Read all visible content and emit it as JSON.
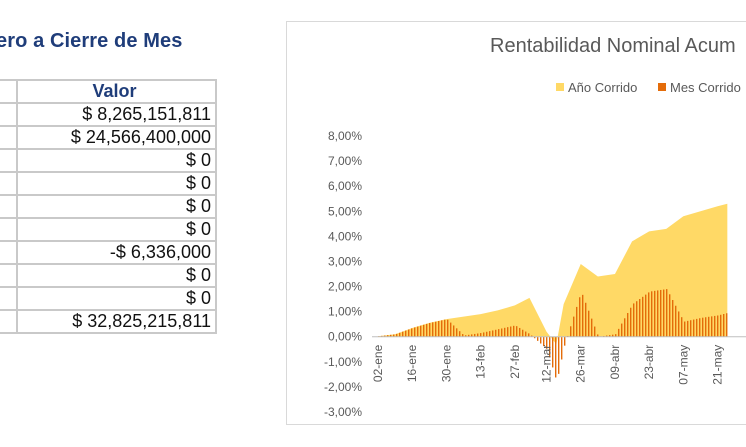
{
  "report": {
    "title": "ero a Cierre de Mes",
    "column_header": "Valor",
    "values": [
      "$ 8,265,151,811",
      "$ 24,566,400,000",
      "$ 0",
      "$ 0",
      "$ 0",
      "$ 0",
      "-$ 6,336,000",
      "$ 0",
      "$ 0",
      "$ 32,825,215,811"
    ]
  },
  "chart_data": {
    "type": "area",
    "title": "Rentabilidad Nominal Acum",
    "legend": [
      {
        "name": "Año Corrido",
        "color": "#ffd966"
      },
      {
        "name": "Mes Corrido",
        "color": "#e46c0a"
      }
    ],
    "legend_position": "top",
    "ylim": [
      -3,
      8
    ],
    "y_ticks": [
      "8,00%",
      "7,00%",
      "6,00%",
      "5,00%",
      "4,00%",
      "3,00%",
      "2,00%",
      "1,00%",
      "0,00%",
      "-1,00%",
      "-2,00%",
      "-3,00%"
    ],
    "x_ticks": [
      "02-ene",
      "16-ene",
      "30-ene",
      "13-feb",
      "27-feb",
      "12-mar",
      "26-mar",
      "09-abr",
      "23-abr",
      "07-may",
      "21-may"
    ],
    "grid": false,
    "series": [
      {
        "name": "Año Corrido",
        "x": [
          "02-ene",
          "09-ene",
          "16-ene",
          "23-ene",
          "30-ene",
          "06-feb",
          "13-feb",
          "20-feb",
          "27-feb",
          "05-mar",
          "12-mar",
          "16-mar",
          "19-mar",
          "26-mar",
          "02-abr",
          "09-abr",
          "16-abr",
          "23-abr",
          "30-abr",
          "07-may",
          "14-may",
          "21-may",
          "25-may"
        ],
        "values": [
          0.02,
          0.1,
          0.35,
          0.55,
          0.7,
          0.8,
          0.9,
          1.05,
          1.25,
          1.55,
          0.2,
          -0.3,
          1.3,
          2.9,
          2.4,
          2.5,
          3.8,
          4.2,
          4.3,
          4.8,
          5.0,
          5.2,
          5.3
        ]
      },
      {
        "name": "Mes Corrido",
        "x": [
          "02-ene",
          "09-ene",
          "16-ene",
          "23-ene",
          "30-ene",
          "06-feb",
          "13-feb",
          "20-feb",
          "27-feb",
          "05-mar",
          "12-mar",
          "16-mar",
          "19-mar",
          "26-mar",
          "02-abr",
          "09-abr",
          "16-abr",
          "23-abr",
          "30-abr",
          "07-may",
          "14-may",
          "21-may",
          "25-may"
        ],
        "values": [
          0.02,
          0.1,
          0.35,
          0.55,
          0.7,
          0.05,
          0.15,
          0.3,
          0.45,
          0.1,
          -0.5,
          -1.8,
          -0.4,
          1.8,
          0.0,
          0.1,
          1.3,
          1.8,
          1.9,
          0.6,
          0.75,
          0.85,
          0.95
        ]
      }
    ]
  }
}
